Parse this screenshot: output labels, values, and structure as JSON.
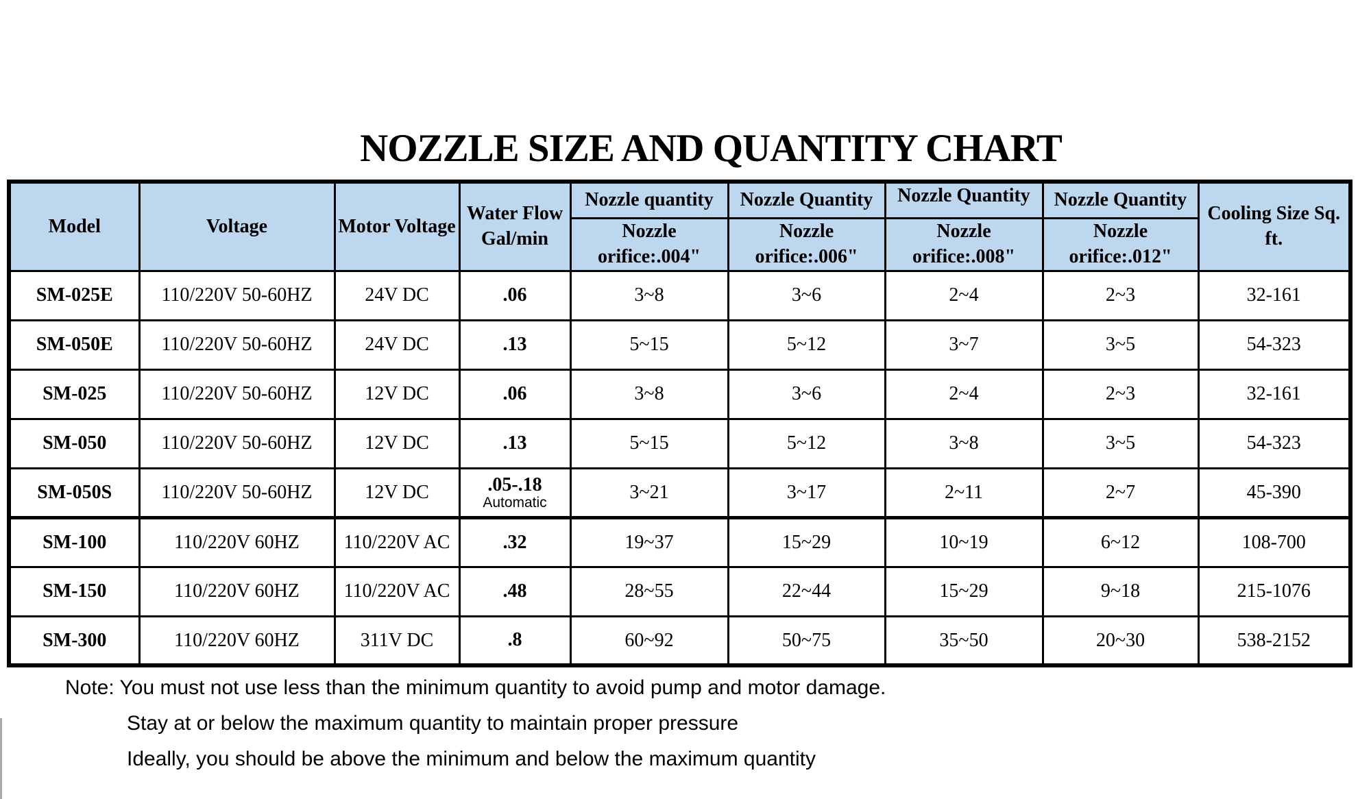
{
  "title": "NOZZLE SIZE AND QUANTITY CHART",
  "colors": {
    "header_bg": "#BDD7EE",
    "border": "#000000",
    "page_bg": "#FFFFFF"
  },
  "table": {
    "header": {
      "model": "Model",
      "voltage": "Voltage",
      "motor_voltage": "Motor Voltage",
      "water_flow": "Water Flow Gal/min",
      "cooling": "Cooling Size Sq. ft.",
      "nozzle_groups": [
        {
          "quantity_label": "Nozzle quantity",
          "orifice_label": "Nozzle orifice:.004\""
        },
        {
          "quantity_label": "Nozzle Quantity",
          "orifice_label": "Nozzle orifice:.006\""
        },
        {
          "quantity_label": "Nozzle Quantity",
          "orifice_label": "Nozzle orifice:.008\""
        },
        {
          "quantity_label": "Nozzle Quantity",
          "orifice_label": "Nozzle orifice:.012\""
        }
      ]
    },
    "rows": [
      {
        "model": "SM-025E",
        "voltage": "110/220V 50-60HZ",
        "motor_voltage": "24V DC",
        "water_flow": ".06",
        "water_flow_sub": "",
        "q004": "3~8",
        "q006": "3~6",
        "q008": "2~4",
        "q012": "2~3",
        "cooling": "32-161"
      },
      {
        "model": "SM-050E",
        "voltage": "110/220V 50-60HZ",
        "motor_voltage": "24V DC",
        "water_flow": ".13",
        "water_flow_sub": "",
        "q004": "5~15",
        "q006": "5~12",
        "q008": "3~7",
        "q012": "3~5",
        "cooling": "54-323"
      },
      {
        "model": "SM-025",
        "voltage": "110/220V 50-60HZ",
        "motor_voltage": "12V DC",
        "water_flow": ".06",
        "water_flow_sub": "",
        "q004": "3~8",
        "q006": "3~6",
        "q008": "2~4",
        "q012": "2~3",
        "cooling": "32-161"
      },
      {
        "model": "SM-050",
        "voltage": "110/220V 50-60HZ",
        "motor_voltage": "12V DC",
        "water_flow": ".13",
        "water_flow_sub": "",
        "q004": "5~15",
        "q006": "5~12",
        "q008": "3~8",
        "q012": "3~5",
        "cooling": "54-323"
      },
      {
        "model": "SM-050S",
        "voltage": "110/220V 50-60HZ",
        "motor_voltage": "12V DC",
        "water_flow": ".05-.18",
        "water_flow_sub": "Automatic",
        "q004": "3~21",
        "q006": "3~17",
        "q008": "2~11",
        "q012": "2~7",
        "cooling": "45-390"
      },
      {
        "model": "SM-100",
        "voltage": "110/220V 60HZ",
        "motor_voltage": "110/220V AC",
        "water_flow": ".32",
        "water_flow_sub": "",
        "q004": "19~37",
        "q006": "15~29",
        "q008": "10~19",
        "q012": "6~12",
        "cooling": "108-700"
      },
      {
        "model": "SM-150",
        "voltage": "110/220V 60HZ",
        "motor_voltage": "110/220V AC",
        "water_flow": ".48",
        "water_flow_sub": "",
        "q004": "28~55",
        "q006": "22~44",
        "q008": "15~29",
        "q012": "9~18",
        "cooling": "215-1076"
      },
      {
        "model": "SM-300",
        "voltage": "110/220V 60HZ",
        "motor_voltage": "311V DC",
        "water_flow": ".8",
        "water_flow_sub": "",
        "q004": "60~92",
        "q006": "50~75",
        "q008": "35~50",
        "q012": "20~30",
        "cooling": "538-2152"
      }
    ]
  },
  "notes": [
    "Note: You must not use less than the minimum quantity to avoid pump and motor damage.",
    "Stay at or below the maximum quantity to maintain proper pressure",
    "Ideally, you should be above the minimum and below the maximum quantity"
  ]
}
